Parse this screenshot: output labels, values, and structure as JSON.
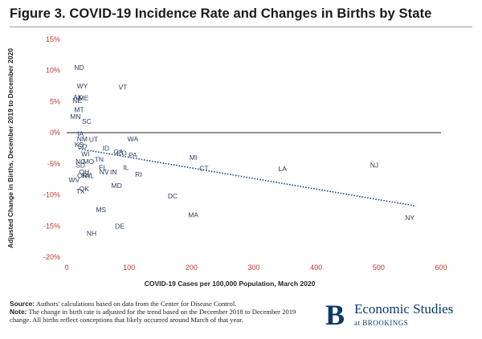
{
  "header": {
    "title": "Figure 3. COVID-19 Incidence Rate and Changes in Births by State"
  },
  "footer": {
    "source_label": "Source:",
    "source_text": " Authors' calculations based on data from the Center for Disease Control.",
    "note_label": "Note:",
    "note_text": " The change in birth rate is adjusted for the trend based on the December 2018 to December 2019 change. All births reflect conceptions that likely occurred around March of that year."
  },
  "logo": {
    "letter": "B",
    "name": "Economic Studies",
    "sub": "at BROOKINGS"
  },
  "colors": {
    "tick_labels": "#c0392b",
    "points": "#2a3f5f",
    "trendline": "#1f4e8c",
    "zero_line": "#222222"
  },
  "chart_data": {
    "type": "scatter",
    "title": "Figure 3. COVID-19 Incidence Rate and Changes in Births by State",
    "xlabel": "COVID-19 Cases per 100,000 Population, March 2020",
    "ylabel": "Adjusted Change in Births, December 2019 to December 2020",
    "xlim": [
      0,
      600
    ],
    "ylim": [
      -20,
      15
    ],
    "xticks": [
      0,
      100,
      200,
      300,
      400,
      500,
      600
    ],
    "yticks": [
      15,
      10,
      5,
      0,
      -5,
      -10,
      -15,
      -20
    ],
    "ytick_labels": [
      "15%",
      "10%",
      "5%",
      "0%",
      "-5%",
      "-10%",
      "-15%",
      "-20%"
    ],
    "grid": false,
    "markers": "state-abbreviation labels",
    "points": [
      {
        "label": "ND",
        "x": 20,
        "y": 10.5
      },
      {
        "label": "WY",
        "x": 25,
        "y": 7.5
      },
      {
        "label": "VT",
        "x": 90,
        "y": 7.3
      },
      {
        "label": "AK",
        "x": 18,
        "y": 5.7
      },
      {
        "label": "ME",
        "x": 27,
        "y": 5.6
      },
      {
        "label": "NE",
        "x": 17,
        "y": 5.2
      },
      {
        "label": "MT",
        "x": 20,
        "y": 3.7
      },
      {
        "label": "MN",
        "x": 14,
        "y": 2.6
      },
      {
        "label": "SC",
        "x": 32,
        "y": 1.8
      },
      {
        "label": "IA",
        "x": 22,
        "y": -0.2
      },
      {
        "label": "NM",
        "x": 25,
        "y": -1.0
      },
      {
        "label": "UT",
        "x": 43,
        "y": -1.1
      },
      {
        "label": "WA",
        "x": 106,
        "y": -1.0
      },
      {
        "label": "KS",
        "x": 20,
        "y": -1.9
      },
      {
        "label": "SD",
        "x": 25,
        "y": -2.2
      },
      {
        "label": "ID",
        "x": 63,
        "y": -2.5
      },
      {
        "label": "WI",
        "x": 30,
        "y": -3.4
      },
      {
        "label": "GA",
        "x": 83,
        "y": -3.1
      },
      {
        "label": "CO",
        "x": 88,
        "y": -3.3
      },
      {
        "label": "PA",
        "x": 106,
        "y": -3.6
      },
      {
        "label": "MI",
        "x": 203,
        "y": -4.0
      },
      {
        "label": "NC",
        "x": 22,
        "y": -4.6
      },
      {
        "label": "MO",
        "x": 35,
        "y": -4.6
      },
      {
        "label": "TN",
        "x": 52,
        "y": -4.3
      },
      {
        "label": "SD",
        "x": 22,
        "y": -5.2
      },
      {
        "label": "FL",
        "x": 58,
        "y": -5.6
      },
      {
        "label": "IL",
        "x": 95,
        "y": -5.6
      },
      {
        "label": "CT",
        "x": 220,
        "y": -5.7
      },
      {
        "label": "LA",
        "x": 346,
        "y": -5.8
      },
      {
        "label": "NJ",
        "x": 493,
        "y": -5.2
      },
      {
        "label": "OH",
        "x": 28,
        "y": -6.3
      },
      {
        "label": "NV",
        "x": 60,
        "y": -6.3
      },
      {
        "label": "IN",
        "x": 75,
        "y": -6.3
      },
      {
        "label": "OR",
        "x": 25,
        "y": -6.9
      },
      {
        "label": "KY",
        "x": 32,
        "y": -6.9
      },
      {
        "label": "AL",
        "x": 37,
        "y": -6.9
      },
      {
        "label": "RI",
        "x": 115,
        "y": -6.7
      },
      {
        "label": "WV",
        "x": 12,
        "y": -7.6
      },
      {
        "label": "MD",
        "x": 80,
        "y": -8.5
      },
      {
        "label": "OK",
        "x": 28,
        "y": -9.0
      },
      {
        "label": "TX",
        "x": 22,
        "y": -9.4
      },
      {
        "label": "DC",
        "x": 170,
        "y": -10.2
      },
      {
        "label": "MS",
        "x": 55,
        "y": -12.4
      },
      {
        "label": "MA",
        "x": 203,
        "y": -13.2
      },
      {
        "label": "NY",
        "x": 550,
        "y": -13.7
      },
      {
        "label": "DE",
        "x": 85,
        "y": -15.0
      },
      {
        "label": "NH",
        "x": 40,
        "y": -16.2
      }
    ],
    "trendline": {
      "style": "dotted",
      "x": [
        20,
        560
      ],
      "y": [
        -2.6,
        -11.8
      ]
    }
  }
}
